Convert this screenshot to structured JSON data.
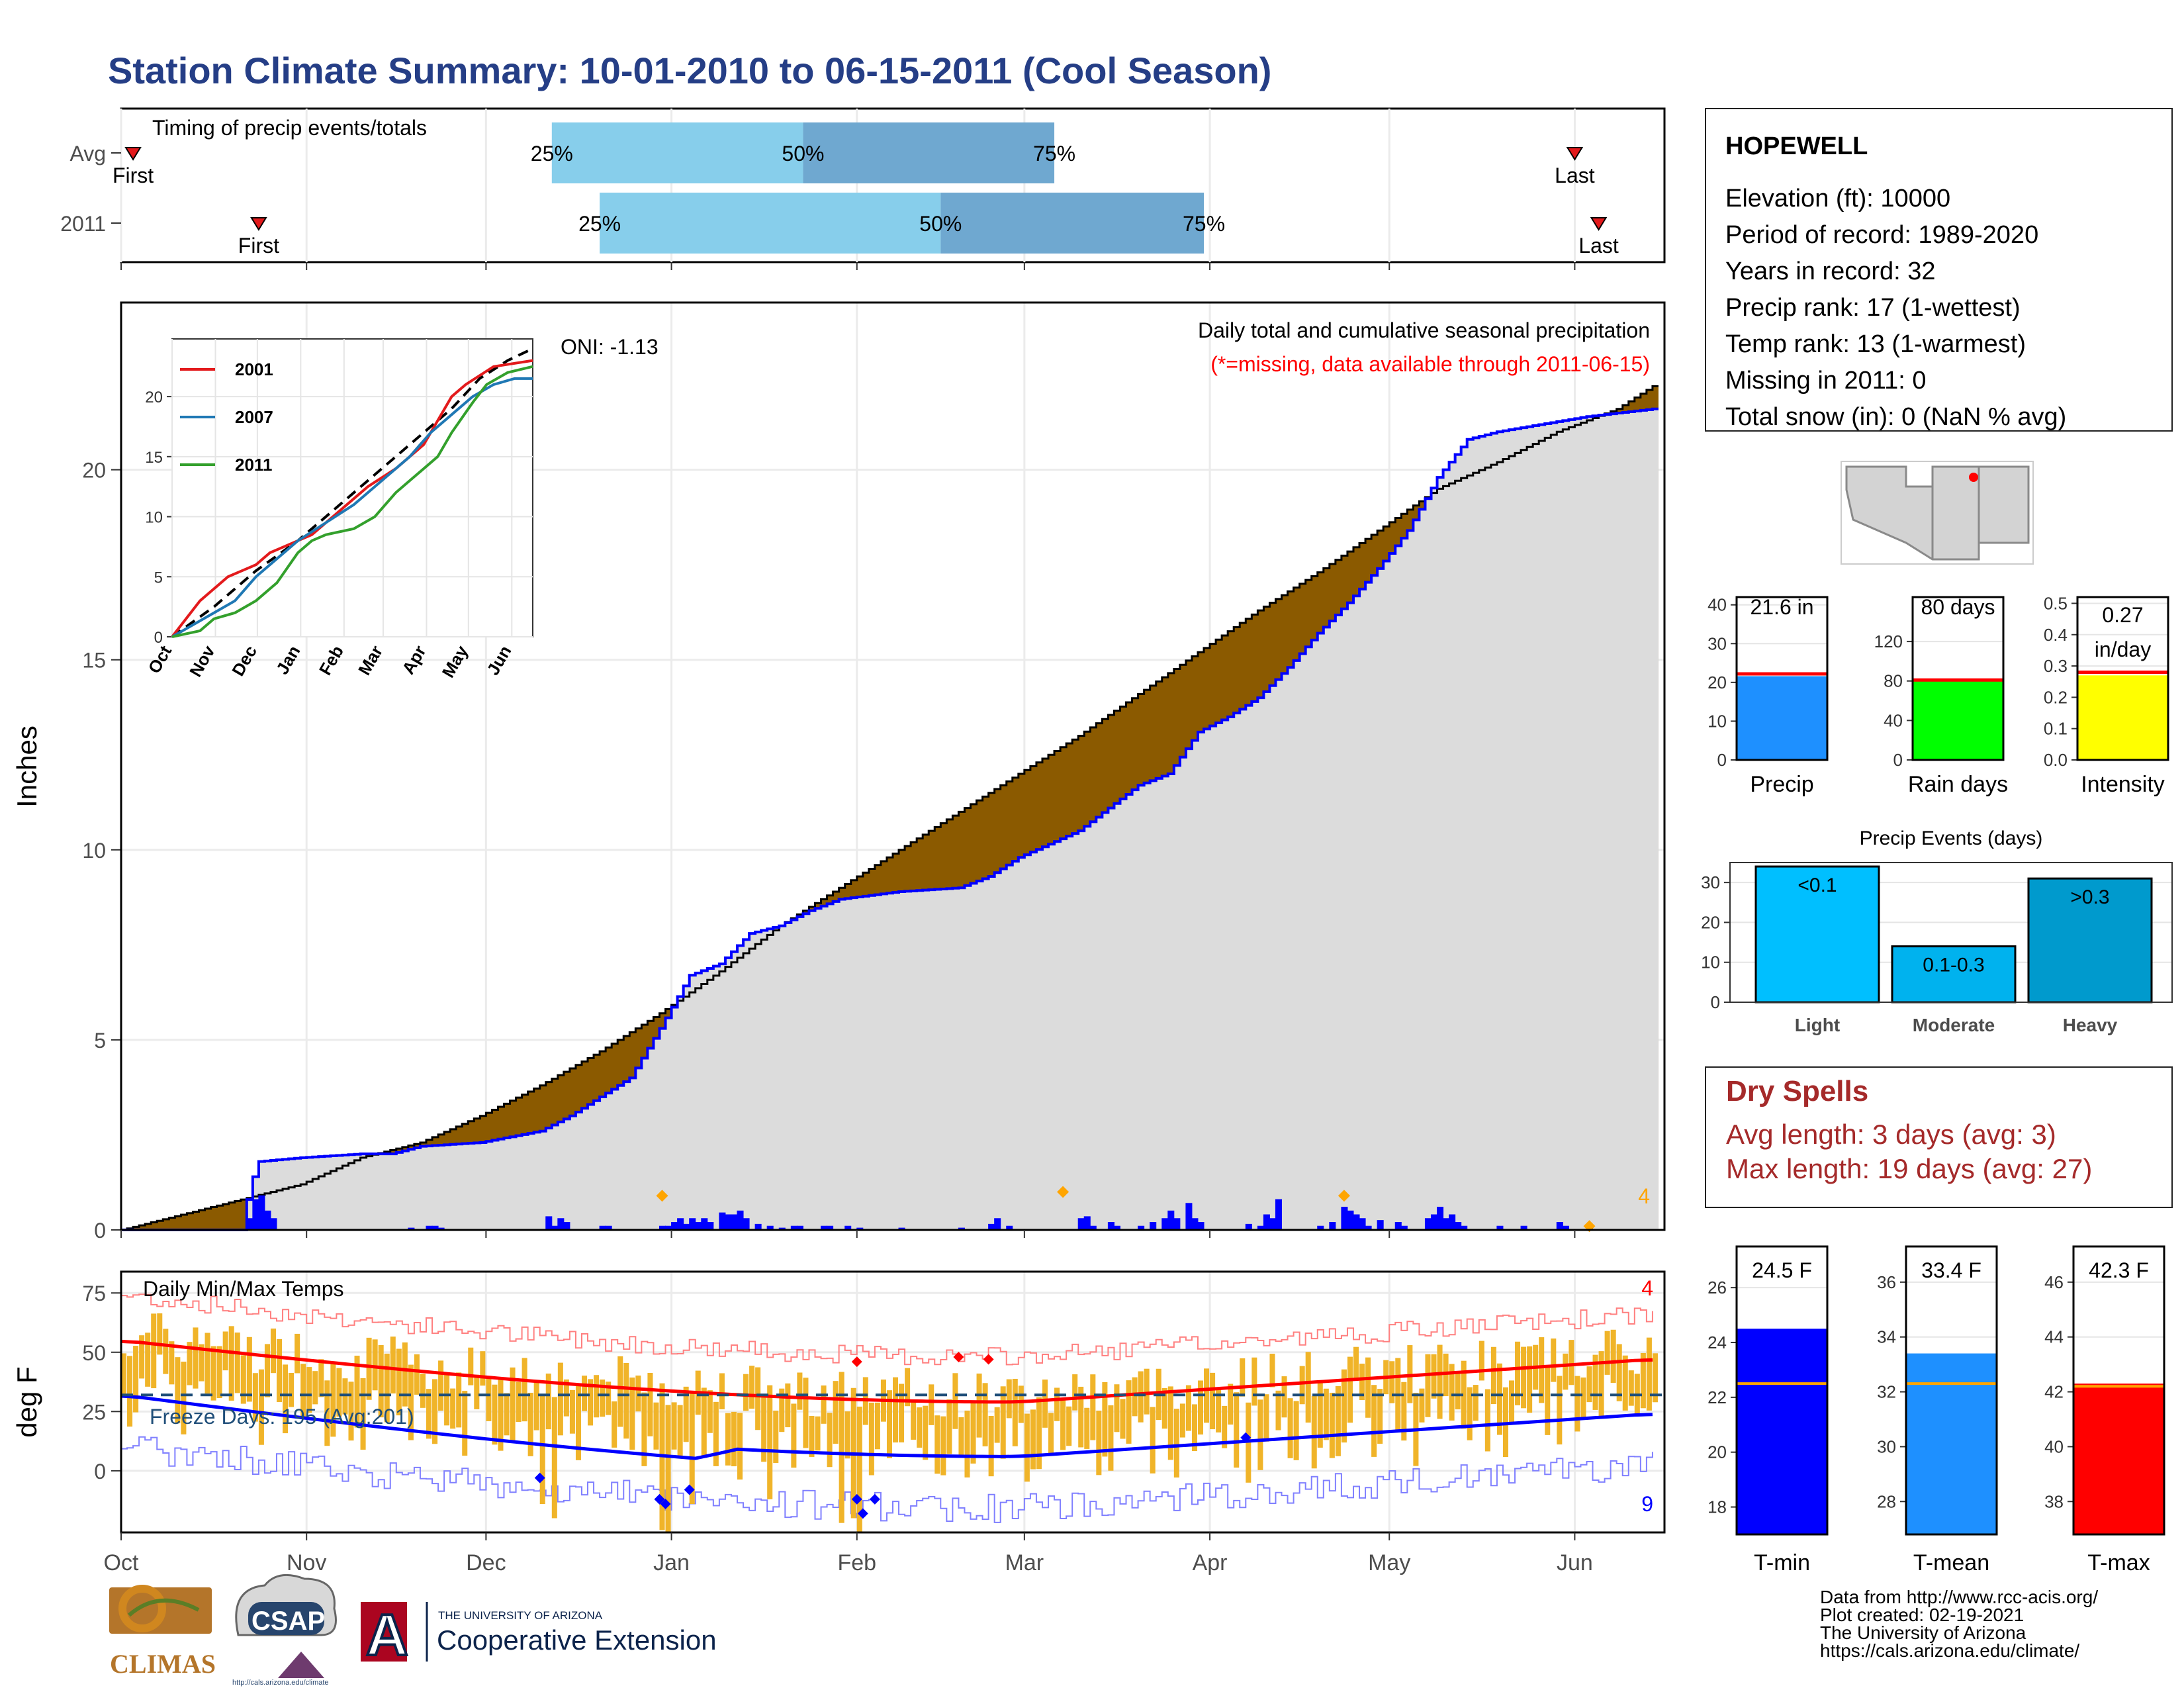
{
  "title": "Station Climate Summary: 10-01-2010 to 06-15-2011 (Cool Season)",
  "months": [
    "Oct",
    "Nov",
    "Dec",
    "Jan",
    "Feb",
    "Mar",
    "Apr",
    "May",
    "Jun"
  ],
  "timing": {
    "label": "Timing of precip events/totals",
    "rows": [
      {
        "name": "Avg",
        "first": "First",
        "last": "Last",
        "p25": "25%",
        "p50": "50%",
        "p75": "75%",
        "first_day": 2,
        "last_day": 243,
        "q25": 72,
        "q50": 114,
        "q75": 156
      },
      {
        "name": "2011",
        "first": "First",
        "last": "Last",
        "p25": "25%",
        "p50": "50%",
        "p75": "75%",
        "first_day": 23,
        "last_day": 247,
        "q25": 80,
        "q50": 137,
        "q75": 181
      }
    ]
  },
  "precip_chart": {
    "ylabel": "Inches",
    "yticks": [
      0,
      5,
      10,
      15,
      20
    ],
    "oni": "ONI: -1.13",
    "subtitle": "Daily total and cumulative seasonal precipitation",
    "missing_note": "(*=missing, data available through 2011-06-15)",
    "count_label": "4",
    "avg_cum_points": [
      [
        0,
        0
      ],
      [
        10,
        0.4
      ],
      [
        20,
        0.8
      ],
      [
        30,
        1.2
      ],
      [
        40,
        1.9
      ],
      [
        50,
        2.3
      ],
      [
        60,
        3.0
      ],
      [
        70,
        3.8
      ],
      [
        80,
        4.7
      ],
      [
        90,
        5.7
      ],
      [
        100,
        6.8
      ],
      [
        110,
        8.0
      ],
      [
        120,
        9.0
      ],
      [
        130,
        10.0
      ],
      [
        140,
        11.0
      ],
      [
        150,
        12.0
      ],
      [
        160,
        13.0
      ],
      [
        170,
        14.1
      ],
      [
        180,
        15.2
      ],
      [
        190,
        16.3
      ],
      [
        200,
        17.3
      ],
      [
        210,
        18.4
      ],
      [
        220,
        19.5
      ],
      [
        230,
        20.2
      ],
      [
        240,
        21.0
      ],
      [
        250,
        21.6
      ],
      [
        256,
        22.2
      ]
    ],
    "cum_2011_points": [
      [
        0,
        0
      ],
      [
        20,
        0
      ],
      [
        21,
        0.8
      ],
      [
        22,
        1.4
      ],
      [
        23,
        1.8
      ],
      [
        30,
        1.9
      ],
      [
        40,
        2.0
      ],
      [
        45,
        2.0
      ],
      [
        50,
        2.2
      ],
      [
        60,
        2.3
      ],
      [
        70,
        2.6
      ],
      [
        75,
        3.0
      ],
      [
        80,
        3.5
      ],
      [
        85,
        4.0
      ],
      [
        90,
        5.3
      ],
      [
        95,
        6.7
      ],
      [
        100,
        7.0
      ],
      [
        105,
        7.8
      ],
      [
        110,
        8.0
      ],
      [
        115,
        8.4
      ],
      [
        120,
        8.7
      ],
      [
        130,
        8.9
      ],
      [
        140,
        9.0
      ],
      [
        145,
        9.3
      ],
      [
        150,
        9.8
      ],
      [
        160,
        10.5
      ],
      [
        170,
        11.7
      ],
      [
        175,
        12.0
      ],
      [
        180,
        13.1
      ],
      [
        185,
        13.5
      ],
      [
        190,
        14.0
      ],
      [
        195,
        14.8
      ],
      [
        200,
        15.7
      ],
      [
        205,
        16.5
      ],
      [
        210,
        17.4
      ],
      [
        215,
        18.4
      ],
      [
        220,
        19.8
      ],
      [
        225,
        20.8
      ],
      [
        230,
        21.0
      ],
      [
        245,
        21.4
      ],
      [
        256,
        21.6
      ]
    ],
    "daily_precip": [
      [
        21,
        0.3
      ],
      [
        22,
        0.8
      ],
      [
        23,
        0.9
      ],
      [
        24,
        0.5
      ],
      [
        25,
        0.3
      ],
      [
        48,
        0.05
      ],
      [
        51,
        0.1
      ],
      [
        52,
        0.1
      ],
      [
        53,
        0.05
      ],
      [
        71,
        0.35
      ],
      [
        72,
        0.1
      ],
      [
        73,
        0.3
      ],
      [
        74,
        0.2
      ],
      [
        80,
        0.1
      ],
      [
        81,
        0.1
      ],
      [
        90,
        0.1
      ],
      [
        91,
        0.1
      ],
      [
        92,
        0.2
      ],
      [
        93,
        0.3
      ],
      [
        94,
        0.15
      ],
      [
        95,
        0.3
      ],
      [
        96,
        0.2
      ],
      [
        97,
        0.3
      ],
      [
        98,
        0.2
      ],
      [
        100,
        0.45
      ],
      [
        101,
        0.4
      ],
      [
        102,
        0.4
      ],
      [
        103,
        0.5
      ],
      [
        104,
        0.3
      ],
      [
        106,
        0.15
      ],
      [
        108,
        0.1
      ],
      [
        110,
        0.05
      ],
      [
        112,
        0.1
      ],
      [
        113,
        0.1
      ],
      [
        117,
        0.1
      ],
      [
        118,
        0.1
      ],
      [
        121,
        0.1
      ],
      [
        123,
        0.05
      ],
      [
        130,
        0.05
      ],
      [
        140,
        0.05
      ],
      [
        145,
        0.15
      ],
      [
        146,
        0.3
      ],
      [
        148,
        0.1
      ],
      [
        160,
        0.3
      ],
      [
        161,
        0.35
      ],
      [
        162,
        0.1
      ],
      [
        165,
        0.2
      ],
      [
        166,
        0.1
      ],
      [
        170,
        0.1
      ],
      [
        172,
        0.2
      ],
      [
        174,
        0.3
      ],
      [
        175,
        0.5
      ],
      [
        176,
        0.3
      ],
      [
        178,
        0.7
      ],
      [
        179,
        0.3
      ],
      [
        180,
        0.2
      ],
      [
        188,
        0.15
      ],
      [
        190,
        0.1
      ],
      [
        191,
        0.4
      ],
      [
        192,
        0.3
      ],
      [
        193,
        0.8
      ],
      [
        200,
        0.1
      ],
      [
        202,
        0.2
      ],
      [
        204,
        0.6
      ],
      [
        205,
        0.5
      ],
      [
        206,
        0.4
      ],
      [
        207,
        0.3
      ],
      [
        208,
        0.1
      ],
      [
        210,
        0.25
      ],
      [
        213,
        0.2
      ],
      [
        214,
        0.1
      ],
      [
        218,
        0.3
      ],
      [
        219,
        0.4
      ],
      [
        220,
        0.6
      ],
      [
        221,
        0.3
      ],
      [
        222,
        0.4
      ],
      [
        223,
        0.2
      ],
      [
        224,
        0.1
      ],
      [
        230,
        0.1
      ],
      [
        234,
        0.1
      ],
      [
        240,
        0.2
      ],
      [
        241,
        0.1
      ],
      [
        245,
        0.05
      ]
    ],
    "orange_markers": [
      [
        90,
        0.9
      ],
      [
        157,
        1.0
      ],
      [
        204,
        0.9
      ],
      [
        245,
        0.1
      ]
    ]
  },
  "inset": {
    "yticks": [
      0,
      5,
      10,
      15,
      20
    ],
    "series": [
      {
        "name": "2001",
        "color": "#e31a1c"
      },
      {
        "name": "2007",
        "color": "#1f78b4"
      },
      {
        "name": "2011",
        "color": "#33a02c"
      }
    ]
  },
  "temp_chart": {
    "ylabel": "deg F",
    "label": "Daily Min/Max Temps",
    "freeze_text": "Freeze Days: 195 (Avg:201)",
    "yticks": [
      0,
      25,
      50,
      75
    ],
    "count_top": "4",
    "count_bottom": "9"
  },
  "station": {
    "name": "HOPEWELL",
    "lines": [
      "Elevation (ft): 10000",
      "Period of record: 1989-2020",
      "Years in record: 32",
      "Precip rank: 17 (1-wettest)",
      "Temp rank: 13 (1-warmest)",
      "Missing in 2011: 0",
      "Total snow (in): 0 (NaN % avg)"
    ]
  },
  "summary_bars": [
    {
      "label": "Precip",
      "value_text": "21.6 in",
      "value": 21.6,
      "avg": 22.2,
      "ymax": 42,
      "yticks": [
        0,
        10,
        20,
        30,
        40
      ],
      "color": "#1e90ff"
    },
    {
      "label": "Rain days",
      "value_text": "80 days",
      "value": 80,
      "avg": 81,
      "ymax": 165,
      "yticks": [
        0,
        40,
        80,
        120
      ],
      "color": "#00ff00"
    },
    {
      "label": "Intensity",
      "value_text_1": "0.27",
      "value_text_2": "in/day",
      "value": 0.27,
      "avg": 0.28,
      "ymax": 0.52,
      "yticks": [
        0.0,
        0.1,
        0.2,
        0.3,
        0.4,
        0.5
      ],
      "color": "#ffff00"
    }
  ],
  "events": {
    "title": "Precip Events (days)",
    "yticks": [
      0,
      10,
      20,
      30
    ],
    "bars": [
      {
        "cat": "Light",
        "label": "<0.1",
        "value": 34,
        "color": "#00bfff"
      },
      {
        "cat": "Moderate",
        "label": "0.1-0.3",
        "value": 14,
        "color": "#00b2ee"
      },
      {
        "cat": "Heavy",
        "label": ">0.3",
        "value": 31,
        "color": "#009acd"
      }
    ]
  },
  "dry_spells": {
    "title": "Dry Spells",
    "avg": "Avg length: 3 days (avg: 3)",
    "max": "Max length: 19 days (avg: 27)"
  },
  "temp_bars": [
    {
      "label": "T-min",
      "value_text": "24.5 F",
      "value": 24.5,
      "avg": 22.5,
      "ymin": 17,
      "ymax": 27.5,
      "yticks": [
        18,
        20,
        22,
        24,
        26
      ],
      "color": "#0000ff"
    },
    {
      "label": "T-mean",
      "value_text": "33.4 F",
      "value": 33.4,
      "avg": 32.3,
      "ymin": 26.8,
      "ymax": 37.3,
      "yticks": [
        28,
        30,
        32,
        34,
        36
      ],
      "color": "#1e90ff"
    },
    {
      "label": "T-max",
      "value_text": "42.3 F",
      "value": 42.3,
      "avg": 42.2,
      "ymin": 36.8,
      "ymax": 47.3,
      "yticks": [
        38,
        40,
        42,
        44,
        46
      ],
      "color": "#ff0000"
    }
  ],
  "credits": [
    "Data from http://www.rcc-acis.org/",
    "Plot created: 02-19-2021",
    "The University of Arizona",
    "https://cals.arizona.edu/climate/"
  ],
  "logos": {
    "climas": "CLIMAS",
    "csap": "CSAP",
    "csap_url": "http://cals.arizona.edu/climate",
    "ua_line1": "THE UNIVERSITY OF ARIZONA",
    "ua_line2": "Cooperative Extension",
    "ua_letter": "A"
  }
}
